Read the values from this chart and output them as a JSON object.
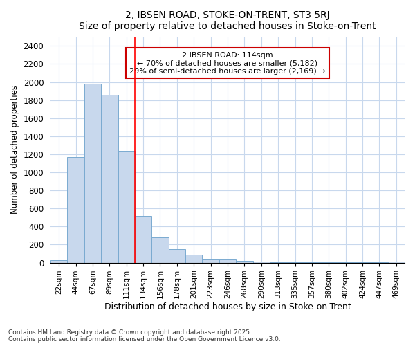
{
  "title1": "2, IBSEN ROAD, STOKE-ON-TRENT, ST3 5RJ",
  "title2": "Size of property relative to detached houses in Stoke-on-Trent",
  "xlabel": "Distribution of detached houses by size in Stoke-on-Trent",
  "ylabel": "Number of detached properties",
  "categories": [
    "22sqm",
    "44sqm",
    "67sqm",
    "89sqm",
    "111sqm",
    "134sqm",
    "156sqm",
    "178sqm",
    "201sqm",
    "223sqm",
    "246sqm",
    "268sqm",
    "290sqm",
    "313sqm",
    "335sqm",
    "357sqm",
    "380sqm",
    "402sqm",
    "424sqm",
    "447sqm",
    "469sqm"
  ],
  "values": [
    25,
    1170,
    1980,
    1860,
    1240,
    520,
    280,
    150,
    90,
    45,
    45,
    20,
    15,
    5,
    3,
    2,
    2,
    2,
    2,
    2,
    15
  ],
  "bar_color": "#c8d8ed",
  "bar_edge_color": "#7aaad0",
  "ylim": [
    0,
    2500
  ],
  "yticks": [
    0,
    200,
    400,
    600,
    800,
    1000,
    1200,
    1400,
    1600,
    1800,
    2000,
    2200,
    2400
  ],
  "red_line_index": 4.5,
  "annotation_title": "2 IBSEN ROAD: 114sqm",
  "annotation_line1": "← 70% of detached houses are smaller (5,182)",
  "annotation_line2": "29% of semi-detached houses are larger (2,169) →",
  "annotation_box_color": "#ffffff",
  "annotation_box_edge": "#cc0000",
  "footer1": "Contains HM Land Registry data © Crown copyright and database right 2025.",
  "footer2": "Contains public sector information licensed under the Open Government Licence v3.0.",
  "bg_color": "#ffffff",
  "plot_bg_color": "#ffffff",
  "grid_color": "#c8d8ed"
}
